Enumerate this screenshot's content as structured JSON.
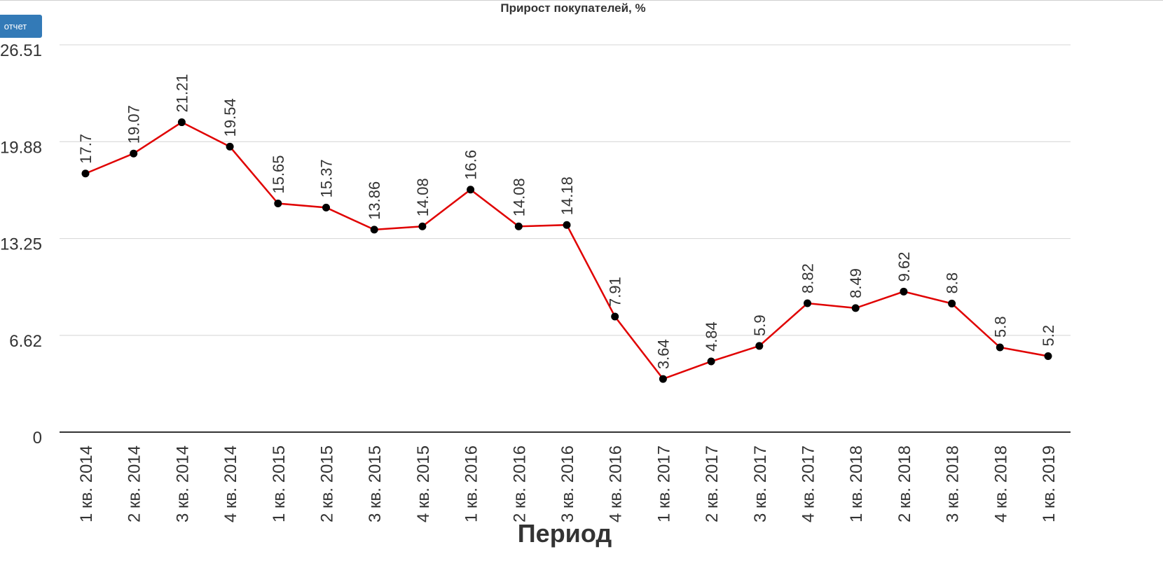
{
  "toolbar": {
    "report_button_label": "отчет"
  },
  "chart_data": {
    "type": "line",
    "title": "Прирост покупателей, %",
    "xlabel": "Период",
    "ylabel": "",
    "categories": [
      "1 кв. 2014",
      "2 кв. 2014",
      "3 кв. 2014",
      "4 кв. 2014",
      "1 кв. 2015",
      "2 кв. 2015",
      "3 кв. 2015",
      "4 кв. 2015",
      "1 кв. 2016",
      "2 кв. 2016",
      "3 кв. 2016",
      "4 кв. 2016",
      "1 кв. 2017",
      "2 кв. 2017",
      "3 кв. 2017",
      "4 кв. 2017",
      "1 кв. 2018",
      "2 кв. 2018",
      "3 кв. 2018",
      "4 кв. 2018",
      "1 кв. 2019"
    ],
    "series": [
      {
        "values": [
          17.7,
          19.07,
          21.21,
          19.54,
          15.65,
          15.37,
          13.86,
          14.08,
          16.6,
          14.08,
          14.18,
          7.91,
          3.64,
          4.84,
          5.9,
          8.82,
          8.49,
          9.62,
          8.8,
          5.8,
          5.2
        ],
        "labels": [
          "17.7",
          "19.07",
          "21.21",
          "19.54",
          "15.65",
          "15.37",
          "13.86",
          "14.08",
          "16.6",
          "14.08",
          "14.18",
          "7.91",
          "3.64",
          "4.84",
          "5.9",
          "8.82",
          "8.49",
          "9.62",
          "8.8",
          "5.8",
          "5.2"
        ],
        "color": "#e00000"
      }
    ],
    "yticks": [
      "0",
      "6.62",
      "13.25",
      "19.88",
      "26.51"
    ],
    "ylim": [
      0,
      26.51
    ],
    "grid": true,
    "legend": "none",
    "point_color": "#000000"
  }
}
